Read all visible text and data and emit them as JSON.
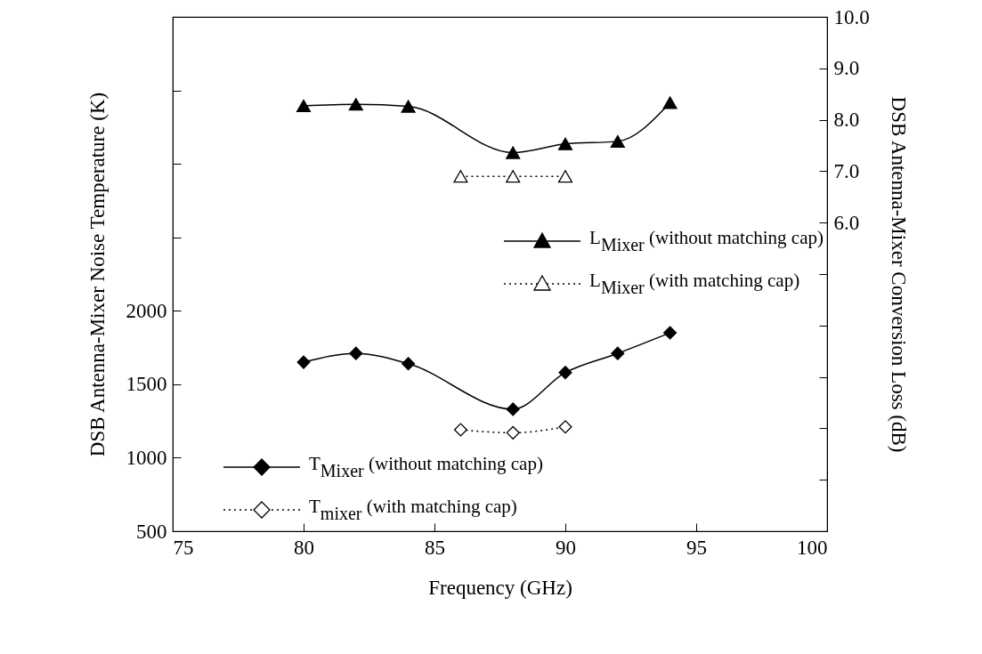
{
  "chart_data": {
    "type": "line",
    "xlabel": "Frequency (GHz)",
    "ylabel": "DSB Antenna-Mixer Noise Temperature (K)",
    "y2label": "DSB Antenna-Mixer Conversion Loss (dB)",
    "xlim": [
      75,
      100
    ],
    "xticks": [
      75,
      80,
      85,
      90,
      95,
      100
    ],
    "ylim": [
      500,
      4000
    ],
    "yticks": [
      500,
      1000,
      1500,
      2000,
      {
        "value": 2500,
        "label": null
      },
      {
        "value": 3000,
        "label": null
      },
      {
        "value": 3500,
        "label": null
      },
      {
        "value": 4000,
        "label": null
      }
    ],
    "y2lim": [
      0,
      10
    ],
    "y2ticks": [
      {
        "value": 1,
        "label": null
      },
      {
        "value": 2,
        "label": null
      },
      {
        "value": 3,
        "label": null
      },
      {
        "value": 4,
        "label": null
      },
      {
        "value": 5,
        "label": null
      },
      {
        "value": 6,
        "label": "6.0"
      },
      {
        "value": 7,
        "label": "7.0"
      },
      {
        "value": 8,
        "label": "8.0"
      },
      {
        "value": 9,
        "label": "9.0"
      },
      {
        "value": 10,
        "label": "10.0"
      }
    ],
    "legend": "bottom left",
    "grid": false,
    "series": [
      {
        "name": "L$_{Mixer}$ (without matching cap)",
        "color": "#000000",
        "axis": "y2",
        "marker": "triangle",
        "line_style": "solid",
        "x": [
          80,
          82,
          84,
          88,
          90,
          92,
          94
        ],
        "values": [
          8.27,
          8.3,
          8.26,
          7.36,
          7.53,
          7.58,
          8.33
        ]
      },
      {
        "name": "L$_{Mixer}$ (with matching cap)",
        "color": "#000000",
        "axis": "y2",
        "marker": "triangle",
        "line_style": "dotted",
        "x": [
          86,
          88,
          90
        ],
        "values": [
          6.9,
          6.9,
          6.9
        ]
      },
      {
        "name": "T$_{Mixer}$ (without matching cap)",
        "color": "#000000",
        "axis": "y",
        "marker": "diamond",
        "line_style": "solid",
        "x": [
          80,
          82,
          84,
          88,
          90,
          92,
          94
        ],
        "values": [
          1650,
          1710,
          1640,
          1330,
          1580,
          1710,
          1850
        ]
      },
      {
        "name": "T$_{mixer}$ (with matching cap)",
        "color": "#000000",
        "axis": "y",
        "marker": "diamond",
        "line_style": "dotted",
        "x": [
          86,
          88,
          90
        ],
        "values": [
          1190,
          1170,
          1210
        ]
      }
    ]
  }
}
